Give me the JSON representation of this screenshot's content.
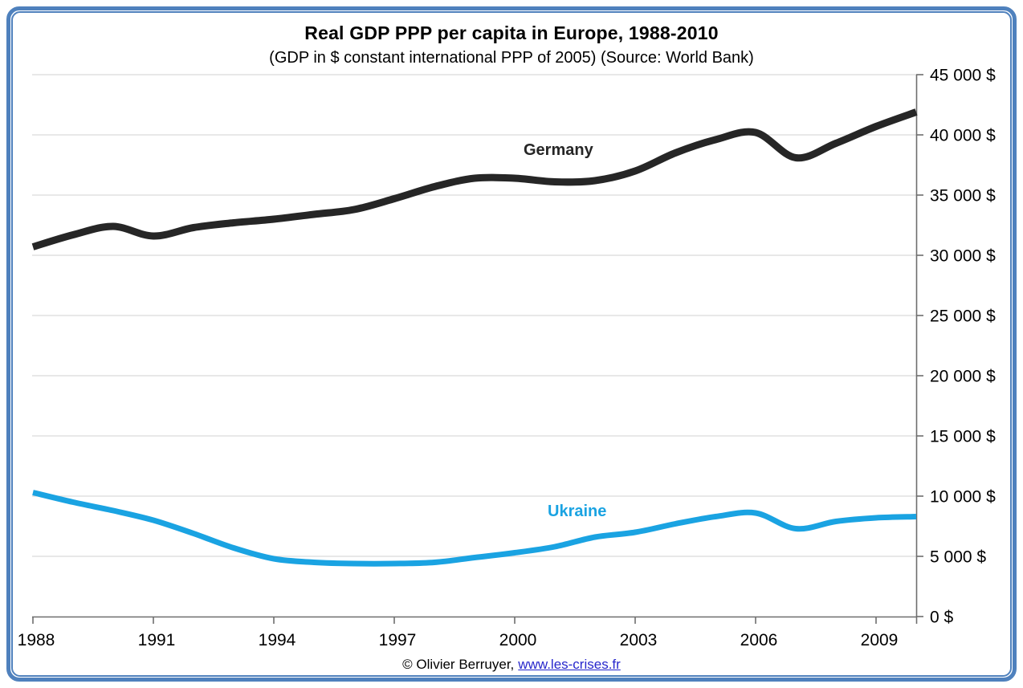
{
  "header": {
    "title": "Real GDP PPP per capita in Europe, 1988-2010",
    "subtitle": "(GDP in $ constant international PPP of 2005) (Source: World Bank)"
  },
  "footer": {
    "copyright": "© Olivier Berruyer,",
    "link": "www.les-crises.fr"
  },
  "frame": {
    "border_color": "#4F81BD"
  },
  "chart_data": {
    "type": "line",
    "title": "Real GDP PPP per capita in Europe, 1988-2010",
    "subtitle": "(GDP in $ constant international PPP of 2005) (Source: World Bank)",
    "xlabel": "",
    "ylabel": "",
    "x": [
      1988,
      1989,
      1990,
      1991,
      1992,
      1993,
      1994,
      1995,
      1996,
      1997,
      1998,
      1999,
      2000,
      2001,
      2002,
      2003,
      2004,
      2005,
      2006,
      2007,
      2008,
      2009,
      2010
    ],
    "series": [
      {
        "name": "Germany",
        "color": "#262626",
        "stroke_width": 9,
        "values": [
          30700,
          31700,
          32400,
          31600,
          32300,
          32700,
          33000,
          33400,
          33800,
          34700,
          35700,
          36400,
          36400,
          36100,
          36200,
          37000,
          38500,
          39600,
          40200,
          38100,
          39300,
          40700,
          41900
        ]
      },
      {
        "name": "Ukraine",
        "color": "#1AA3E2",
        "stroke_width": 7,
        "values": [
          10300,
          9500,
          8800,
          8000,
          6900,
          5700,
          4800,
          4500,
          4400,
          4400,
          4500,
          4900,
          5300,
          5800,
          6600,
          7000,
          7700,
          8300,
          8600,
          7300,
          7900,
          8200,
          8300
        ]
      }
    ],
    "xlim": [
      1988,
      2010
    ],
    "ylim": [
      0,
      45000
    ],
    "y_tick_step": 5000,
    "y_tick_labels": [
      "0 $",
      "5 000 $",
      "10 000 $",
      "15 000 $",
      "20 000 $",
      "25 000 $",
      "30 000 $",
      "35 000 $",
      "40 000 $",
      "45 000 $"
    ],
    "x_tick_labels": [
      "1988",
      "1991",
      "1994",
      "1997",
      "2000",
      "2003",
      "2006",
      "2009"
    ],
    "grid": "horizontal",
    "legend": "inline-series-labels",
    "grid_color": "#D9D9D9",
    "axis_color": "#6E6E6E",
    "smoothed": true
  }
}
